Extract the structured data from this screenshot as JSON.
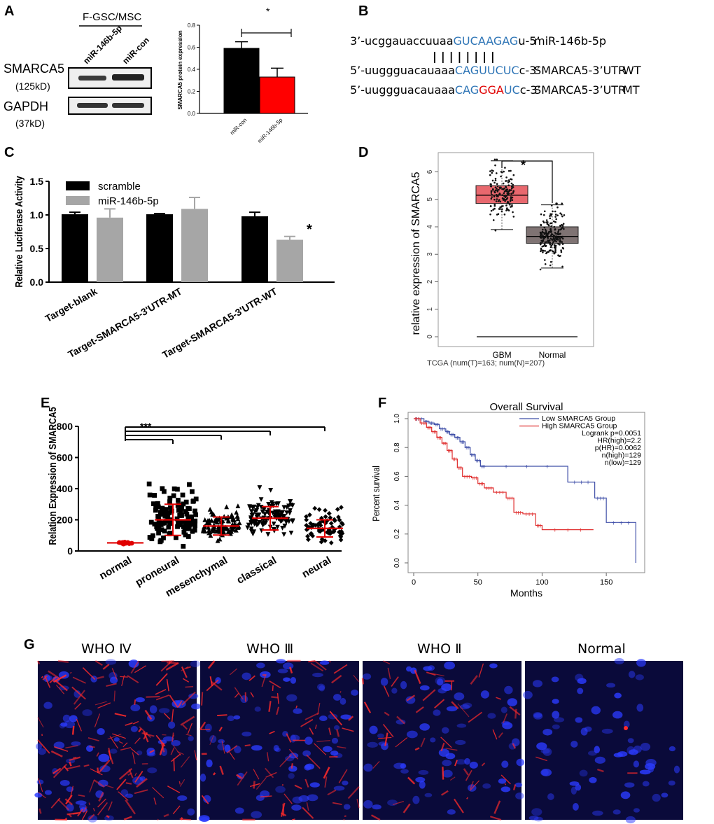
{
  "panel_labels": {
    "A": "A",
    "B": "B",
    "C": "C",
    "D": "D",
    "E": "E",
    "F": "F",
    "G": "G"
  },
  "panelA": {
    "group_label": "F-GSC/MSC",
    "lane_labels": [
      "miR-146b-5p",
      "miR-con"
    ],
    "protein1": "SMARCA5",
    "protein1_kd": "(125kD)",
    "protein2": "GAPDH",
    "protein2_kd": "(37kD)",
    "sig": "*"
  },
  "panelB": {
    "mirna_seq": {
      "pre": "3’-ucggauaccuuaa",
      "seed": "GUCAAGAG",
      "post": "u-5’",
      "name": "miR-146b-5p"
    },
    "bars": "||||||||",
    "wt_seq": {
      "pre": "5’-uuggguacauaaa",
      "seed": "CAGUUCUC",
      "post": "c-3’",
      "name": "SMARCA5-3’UTR",
      "tag": "WT"
    },
    "mt_seq": {
      "pre": "5’-uuggguacauaaa",
      "seed1": "CAG",
      "mut": "GGA",
      "seed2": "UC",
      "post": "c-3’",
      "name": "SMARCA5-3’UTR",
      "tag": "MT"
    },
    "colors": {
      "seed": "#2E75B6",
      "mut": "#E00000"
    }
  },
  "panelC_sig": "*",
  "panelD": {
    "caption": "TCGA (num(T)=163; num(N)=207)",
    "sig": "*"
  },
  "panelE_sig": "***",
  "panelF_censor": "+",
  "panelG": {
    "labels": [
      "WHO Ⅳ",
      "WHO Ⅲ",
      "WHO Ⅱ",
      "Normal"
    ]
  },
  "chart_data": [
    {
      "panel": "A",
      "type": "bar",
      "categories": [
        "miR-con",
        "miR-146b-5p"
      ],
      "values": [
        0.59,
        0.33
      ],
      "errors": [
        0.06,
        0.08
      ],
      "colors": [
        "#000000",
        "#FF0000"
      ],
      "ylabel": "SMARCA5 protein expression",
      "ylim": [
        0,
        0.8
      ],
      "yticks": [
        "0.0",
        "0.2",
        "0.4",
        "0.6",
        "0.8"
      ]
    },
    {
      "panel": "C",
      "type": "bar",
      "categories": [
        "Target-blank",
        "Target-SMARCA5-3'UTR-MT",
        "Target-SMARCA5-3'UTR-WT"
      ],
      "series": [
        {
          "name": "scramble",
          "values": [
            1.01,
            1.01,
            0.98
          ],
          "errors": [
            0.03,
            0.01,
            0.06
          ],
          "color": "#000000"
        },
        {
          "name": "miR-146b-5p",
          "values": [
            0.96,
            1.09,
            0.63
          ],
          "errors": [
            0.13,
            0.17,
            0.05
          ],
          "color": "#A6A6A6"
        }
      ],
      "ylabel": "Relative Luciferase Activity",
      "ylim": [
        0,
        1.5
      ],
      "yticks": [
        "0.0",
        "0.5",
        "1.0",
        "1.5"
      ]
    },
    {
      "panel": "D",
      "type": "box",
      "categories": [
        "GBM",
        "Normal"
      ],
      "boxes": [
        {
          "name": "GBM",
          "q1": 4.85,
          "median": 5.15,
          "q3": 5.5,
          "lo": 3.9,
          "hi": 6.4,
          "color": "#E8686E"
        },
        {
          "name": "Normal",
          "q1": 3.4,
          "median": 3.65,
          "q3": 4.0,
          "lo": 2.5,
          "hi": 4.8,
          "color": "#7F7373"
        }
      ],
      "ylabel": "relative expression of SMARCA5",
      "ylim": [
        0,
        6.7
      ],
      "yticks": [
        "0",
        "1",
        "2",
        "3",
        "4",
        "5",
        "6"
      ]
    },
    {
      "panel": "E",
      "type": "scatter",
      "categories": [
        "normal",
        "proneural",
        "mesenchymal",
        "classical",
        "neural"
      ],
      "means": [
        52,
        200,
        160,
        210,
        145
      ],
      "sds": [
        4,
        100,
        58,
        75,
        55
      ],
      "markers": [
        "circle",
        "square",
        "triangle-up",
        "triangle-down",
        "diamond"
      ],
      "ylabel": "Relation Expression of SMARCA5",
      "ylim": [
        0,
        800
      ],
      "yticks": [
        "0",
        "200",
        "400",
        "600",
        "800"
      ]
    },
    {
      "panel": "F",
      "type": "line",
      "title": "Overall Survival",
      "xlabel": "Months",
      "ylabel": "Percent survival",
      "xlim": [
        0,
        175
      ],
      "ylim": [
        0,
        1.0
      ],
      "xticks": [
        "0",
        "50",
        "100",
        "150"
      ],
      "yticks": [
        "0.0",
        "0.2",
        "0.4",
        "0.6",
        "0.8",
        "1.0"
      ],
      "legend": [
        "Low SMARCA5 Group",
        "High SMARCA5 Group"
      ],
      "stats": [
        "Logrank p=0.0051",
        "HR(high)=2.2",
        "p(HR)=0.0062",
        "n(high)=129",
        "n(low)=129"
      ],
      "series": [
        {
          "name": "Low SMARCA5 Group",
          "color": "#3F4FA8",
          "x": [
            0,
            8,
            12,
            16,
            20,
            25,
            28,
            32,
            36,
            40,
            44,
            48,
            52,
            56,
            120,
            141,
            150,
            173
          ],
          "y": [
            1.0,
            0.98,
            0.97,
            0.96,
            0.93,
            0.91,
            0.89,
            0.87,
            0.84,
            0.8,
            0.75,
            0.71,
            0.67,
            0.67,
            0.56,
            0.45,
            0.28,
            0.0
          ]
        },
        {
          "name": "High SMARCA5 Group",
          "color": "#E03030",
          "x": [
            0,
            5,
            10,
            14,
            18,
            22,
            26,
            30,
            34,
            38,
            45,
            50,
            55,
            62,
            72,
            78,
            85,
            95,
            100,
            140
          ],
          "y": [
            1.0,
            0.97,
            0.94,
            0.91,
            0.87,
            0.83,
            0.78,
            0.72,
            0.66,
            0.6,
            0.59,
            0.55,
            0.52,
            0.49,
            0.45,
            0.35,
            0.34,
            0.26,
            0.23,
            0.23
          ]
        }
      ]
    }
  ]
}
